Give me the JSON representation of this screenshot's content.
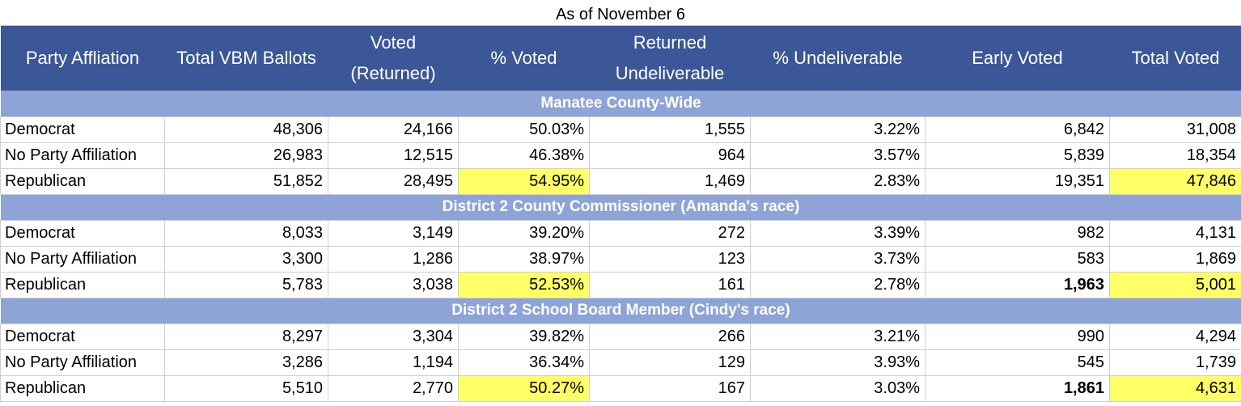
{
  "caption": "As of November 6",
  "headers": [
    "Party Affliation",
    "Total VBM Ballots",
    "Voted (Returned)",
    "% Voted",
    "Returned Undeliverable",
    "% Undeliverable",
    "Early Voted",
    "Total Voted"
  ],
  "highlight_color": "#ffff66",
  "header_color": "#3b5797",
  "section_color": "#8ea4d6",
  "sections": [
    {
      "title": "Manatee County-Wide",
      "rows": [
        {
          "party": "Democrat",
          "total_vbm": "48,306",
          "voted": "24,166",
          "pct_voted": "50.03%",
          "undeliverable": "1,555",
          "pct_undeliverable": "3.22%",
          "early": "6,842",
          "total_voted": "31,008"
        },
        {
          "party": "No Party Affiliation",
          "total_vbm": "26,983",
          "voted": "12,515",
          "pct_voted": "46.38%",
          "undeliverable": "964",
          "pct_undeliverable": "3.57%",
          "early": "5,839",
          "total_voted": "18,354"
        },
        {
          "party": "Republican",
          "total_vbm": "51,852",
          "voted": "28,495",
          "pct_voted": "54.95%",
          "undeliverable": "1,469",
          "pct_undeliverable": "2.83%",
          "early": "19,351",
          "total_voted": "47,846"
        }
      ]
    },
    {
      "title": "District 2 County Commissioner (Amanda's race)",
      "rows": [
        {
          "party": "Democrat",
          "total_vbm": "8,033",
          "voted": "3,149",
          "pct_voted": "39.20%",
          "undeliverable": "272",
          "pct_undeliverable": "3.39%",
          "early": "982",
          "total_voted": "4,131"
        },
        {
          "party": "No Party Affiliation",
          "total_vbm": "3,300",
          "voted": "1,286",
          "pct_voted": "38.97%",
          "undeliverable": "123",
          "pct_undeliverable": "3.73%",
          "early": "583",
          "total_voted": "1,869"
        },
        {
          "party": "Republican",
          "total_vbm": "5,783",
          "voted": "3,038",
          "pct_voted": "52.53%",
          "undeliverable": "161",
          "pct_undeliverable": "2.78%",
          "early": "1,963",
          "total_voted": "5,001"
        }
      ]
    },
    {
      "title": "District 2 School Board Member (Cindy's race)",
      "rows": [
        {
          "party": "Democrat",
          "total_vbm": "8,297",
          "voted": "3,304",
          "pct_voted": "39.82%",
          "undeliverable": "266",
          "pct_undeliverable": "3.21%",
          "early": "990",
          "total_voted": "4,294"
        },
        {
          "party": "No Party Affiliation",
          "total_vbm": "3,286",
          "voted": "1,194",
          "pct_voted": "36.34%",
          "undeliverable": "129",
          "pct_undeliverable": "3.93%",
          "early": "545",
          "total_voted": "1,739"
        },
        {
          "party": "Republican",
          "total_vbm": "5,510",
          "voted": "2,770",
          "pct_voted": "50.27%",
          "undeliverable": "167",
          "pct_undeliverable": "3.03%",
          "early": "1,861",
          "total_voted": "4,631"
        }
      ]
    }
  ]
}
